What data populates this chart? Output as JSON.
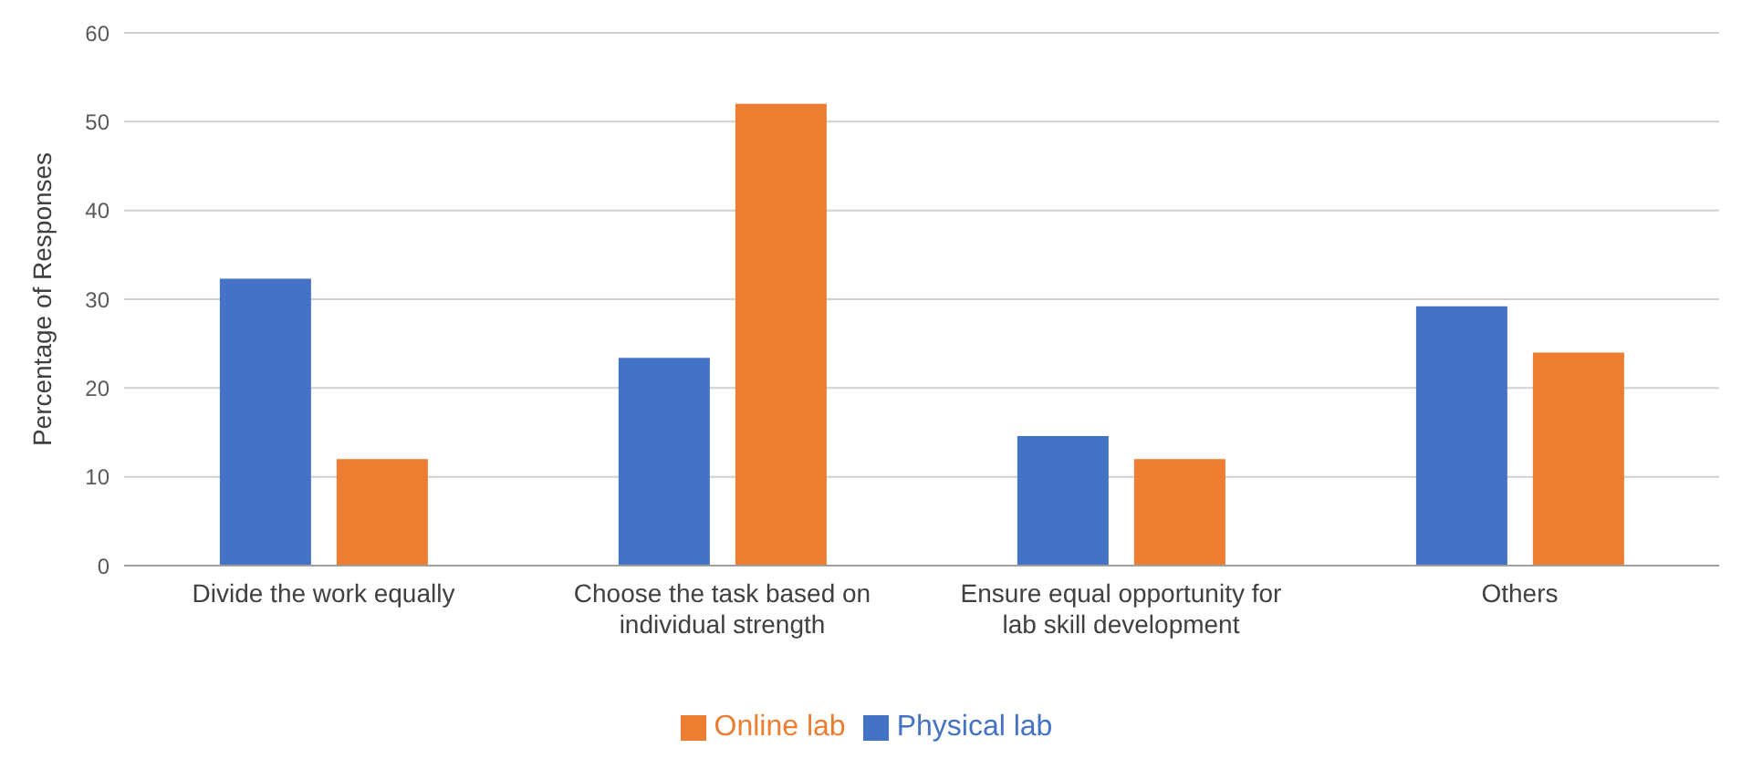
{
  "chart_data": {
    "type": "bar",
    "ylabel": "Percentage of Responses",
    "categories": [
      "Divide the work equally",
      "Choose the task based on individual strength",
      "Ensure equal opportunity for lab skill development",
      "Others"
    ],
    "series": [
      {
        "name": "Physical lab",
        "color": "#4472c4",
        "values": [
          32.3,
          23.4,
          14.6,
          29.2
        ]
      },
      {
        "name": "Online lab",
        "color": "#ed7d31",
        "values": [
          12,
          52,
          12,
          24
        ]
      }
    ],
    "ylim": [
      0,
      60
    ],
    "yticks": [
      0,
      10,
      20,
      30,
      40,
      50,
      60
    ],
    "grid": "y",
    "legend": "bottom"
  }
}
